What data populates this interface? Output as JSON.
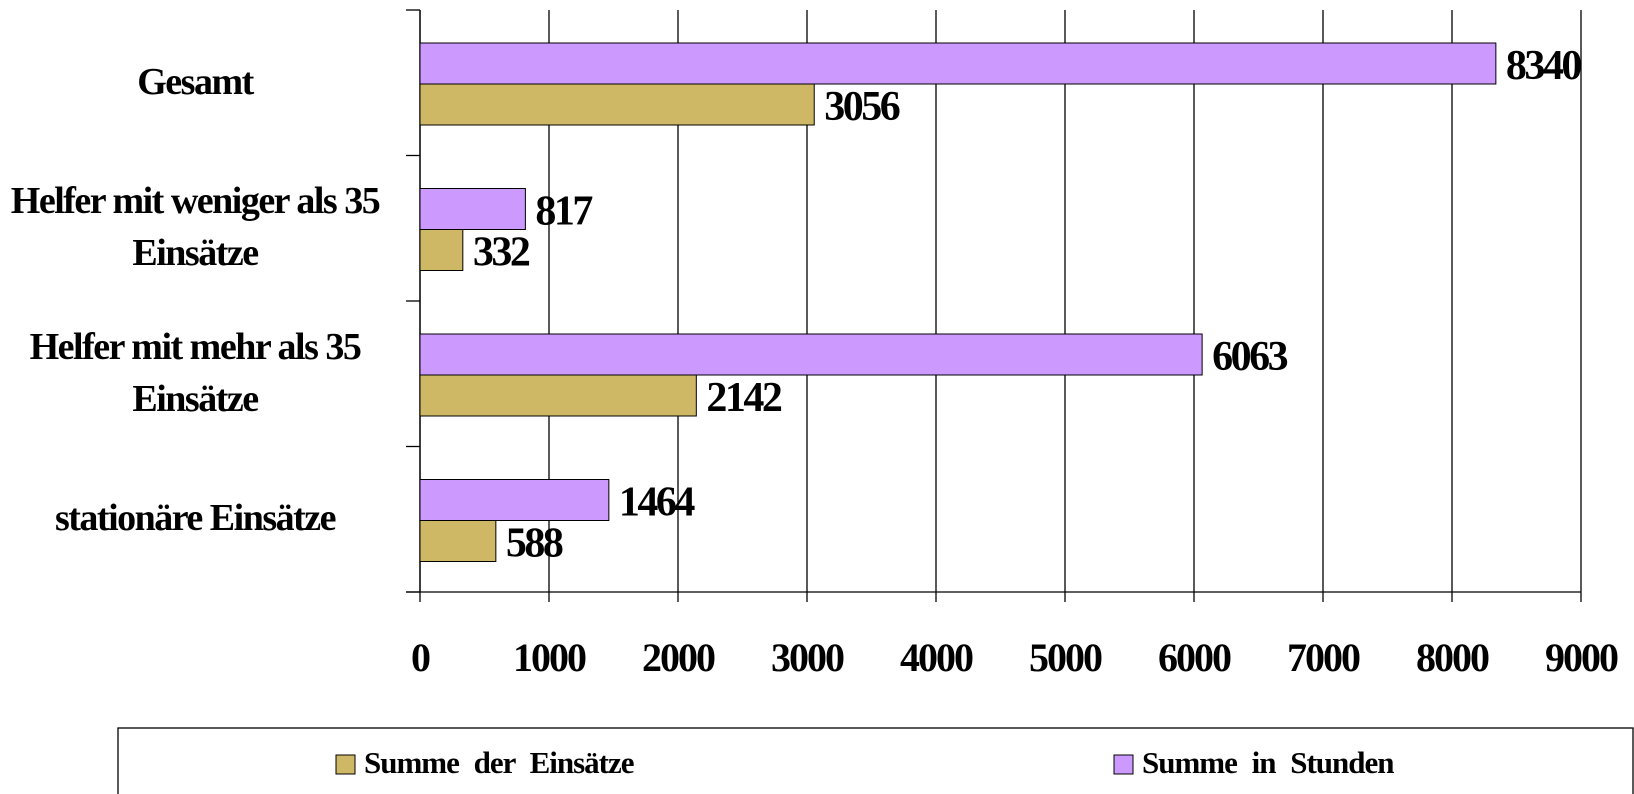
{
  "chart_data": {
    "type": "bar",
    "orientation": "horizontal",
    "categories": [
      "Gesamt",
      "Helfer mit weniger als 35 Einsätze",
      "Helfer mit mehr als 35 Einsätze",
      "stationäre Einsätze"
    ],
    "series": [
      {
        "name": "Summe in Stunden",
        "color": "#cc99ff",
        "values": [
          8340,
          817,
          6063,
          1464
        ]
      },
      {
        "name": "Summe der Einsätze",
        "color": "#cfb865",
        "values": [
          3056,
          332,
          2142,
          588
        ]
      }
    ],
    "xlim": [
      0,
      9000
    ],
    "xticks": [
      0,
      1000,
      2000,
      3000,
      4000,
      5000,
      6000,
      7000,
      8000,
      9000
    ],
    "grid": true,
    "legend": "bottom"
  }
}
